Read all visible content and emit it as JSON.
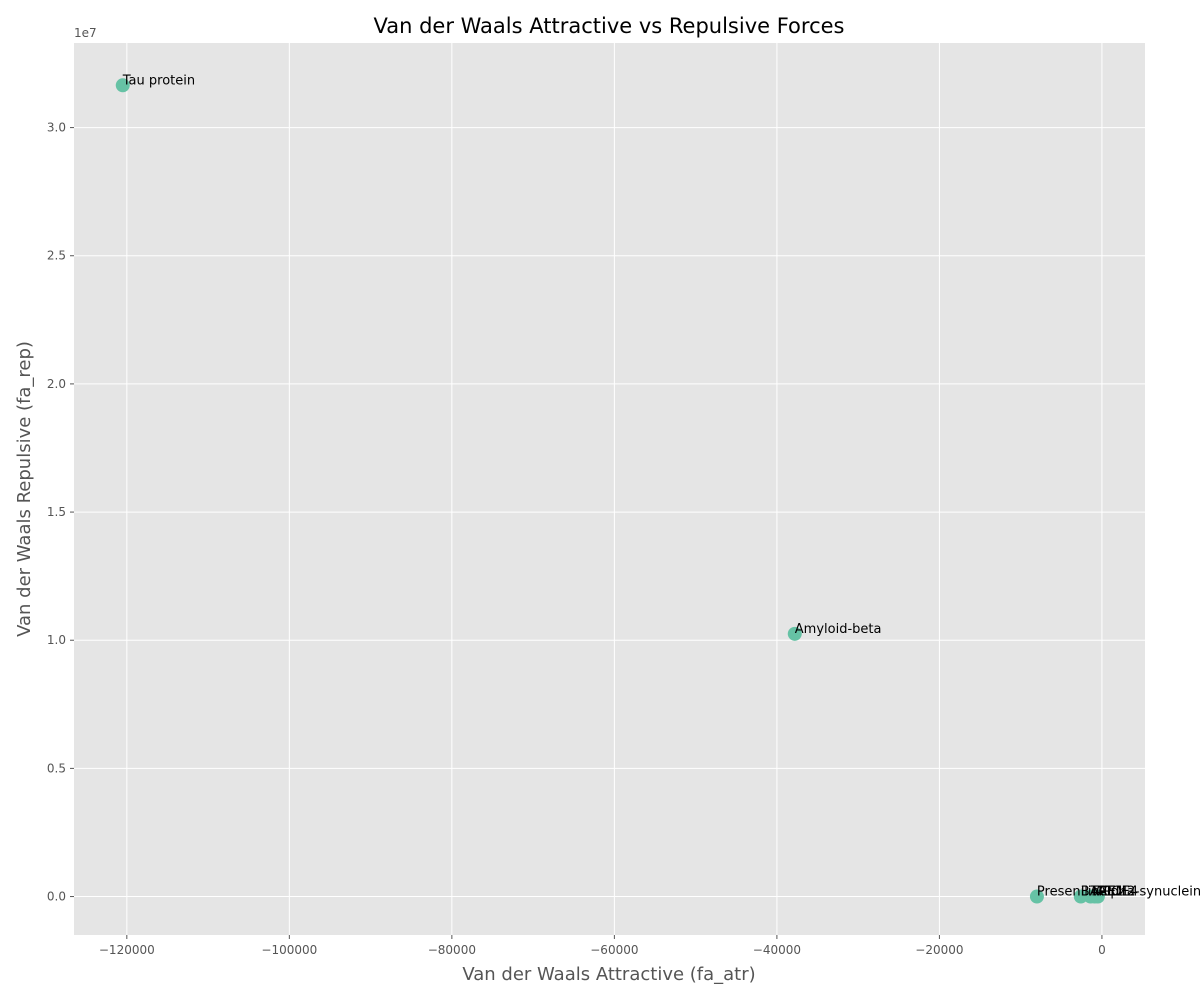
{
  "chart_data": {
    "type": "scatter",
    "title": "Van der Waals Attractive vs Repulsive Forces",
    "xlabel": "Van der Waals Attractive (fa_atr)",
    "ylabel": "Van der Waals Repulsive (fa_rep)",
    "y_offset_label": "1e7",
    "xlim": [
      -126500,
      5300
    ],
    "ylim": [
      -1500000,
      33300000
    ],
    "grid": true,
    "background_color": "#e5e5e5",
    "grid_color": "#ffffff",
    "marker_color": "#66c2a5",
    "x_ticks": [
      -120000,
      -100000,
      -80000,
      -60000,
      -40000,
      -20000,
      0
    ],
    "x_tick_labels": [
      "−120000",
      "−100000",
      "−80000",
      "−60000",
      "−40000",
      "−20000",
      "0"
    ],
    "y_ticks": [
      0,
      5000000,
      10000000,
      15000000,
      20000000,
      25000000,
      30000000
    ],
    "y_tick_labels": [
      "0.0",
      "0.5",
      "1.0",
      "1.5",
      "2.0",
      "2.5",
      "3.0"
    ],
    "points": [
      {
        "label": "Tau protein",
        "x": -120500,
        "y": 31650000
      },
      {
        "label": "Amyloid-beta",
        "x": -37800,
        "y": 10250000
      },
      {
        "label": "Presenilin-1",
        "x": -8000,
        "y": 0
      },
      {
        "label": "BACE1",
        "x": -2600,
        "y": 0
      },
      {
        "label": "TREM2",
        "x": -1400,
        "y": 0
      },
      {
        "label": "APOE4",
        "x": -900,
        "y": 0
      },
      {
        "label": "Alpha-synuclein",
        "x": -500,
        "y": 0
      }
    ]
  }
}
